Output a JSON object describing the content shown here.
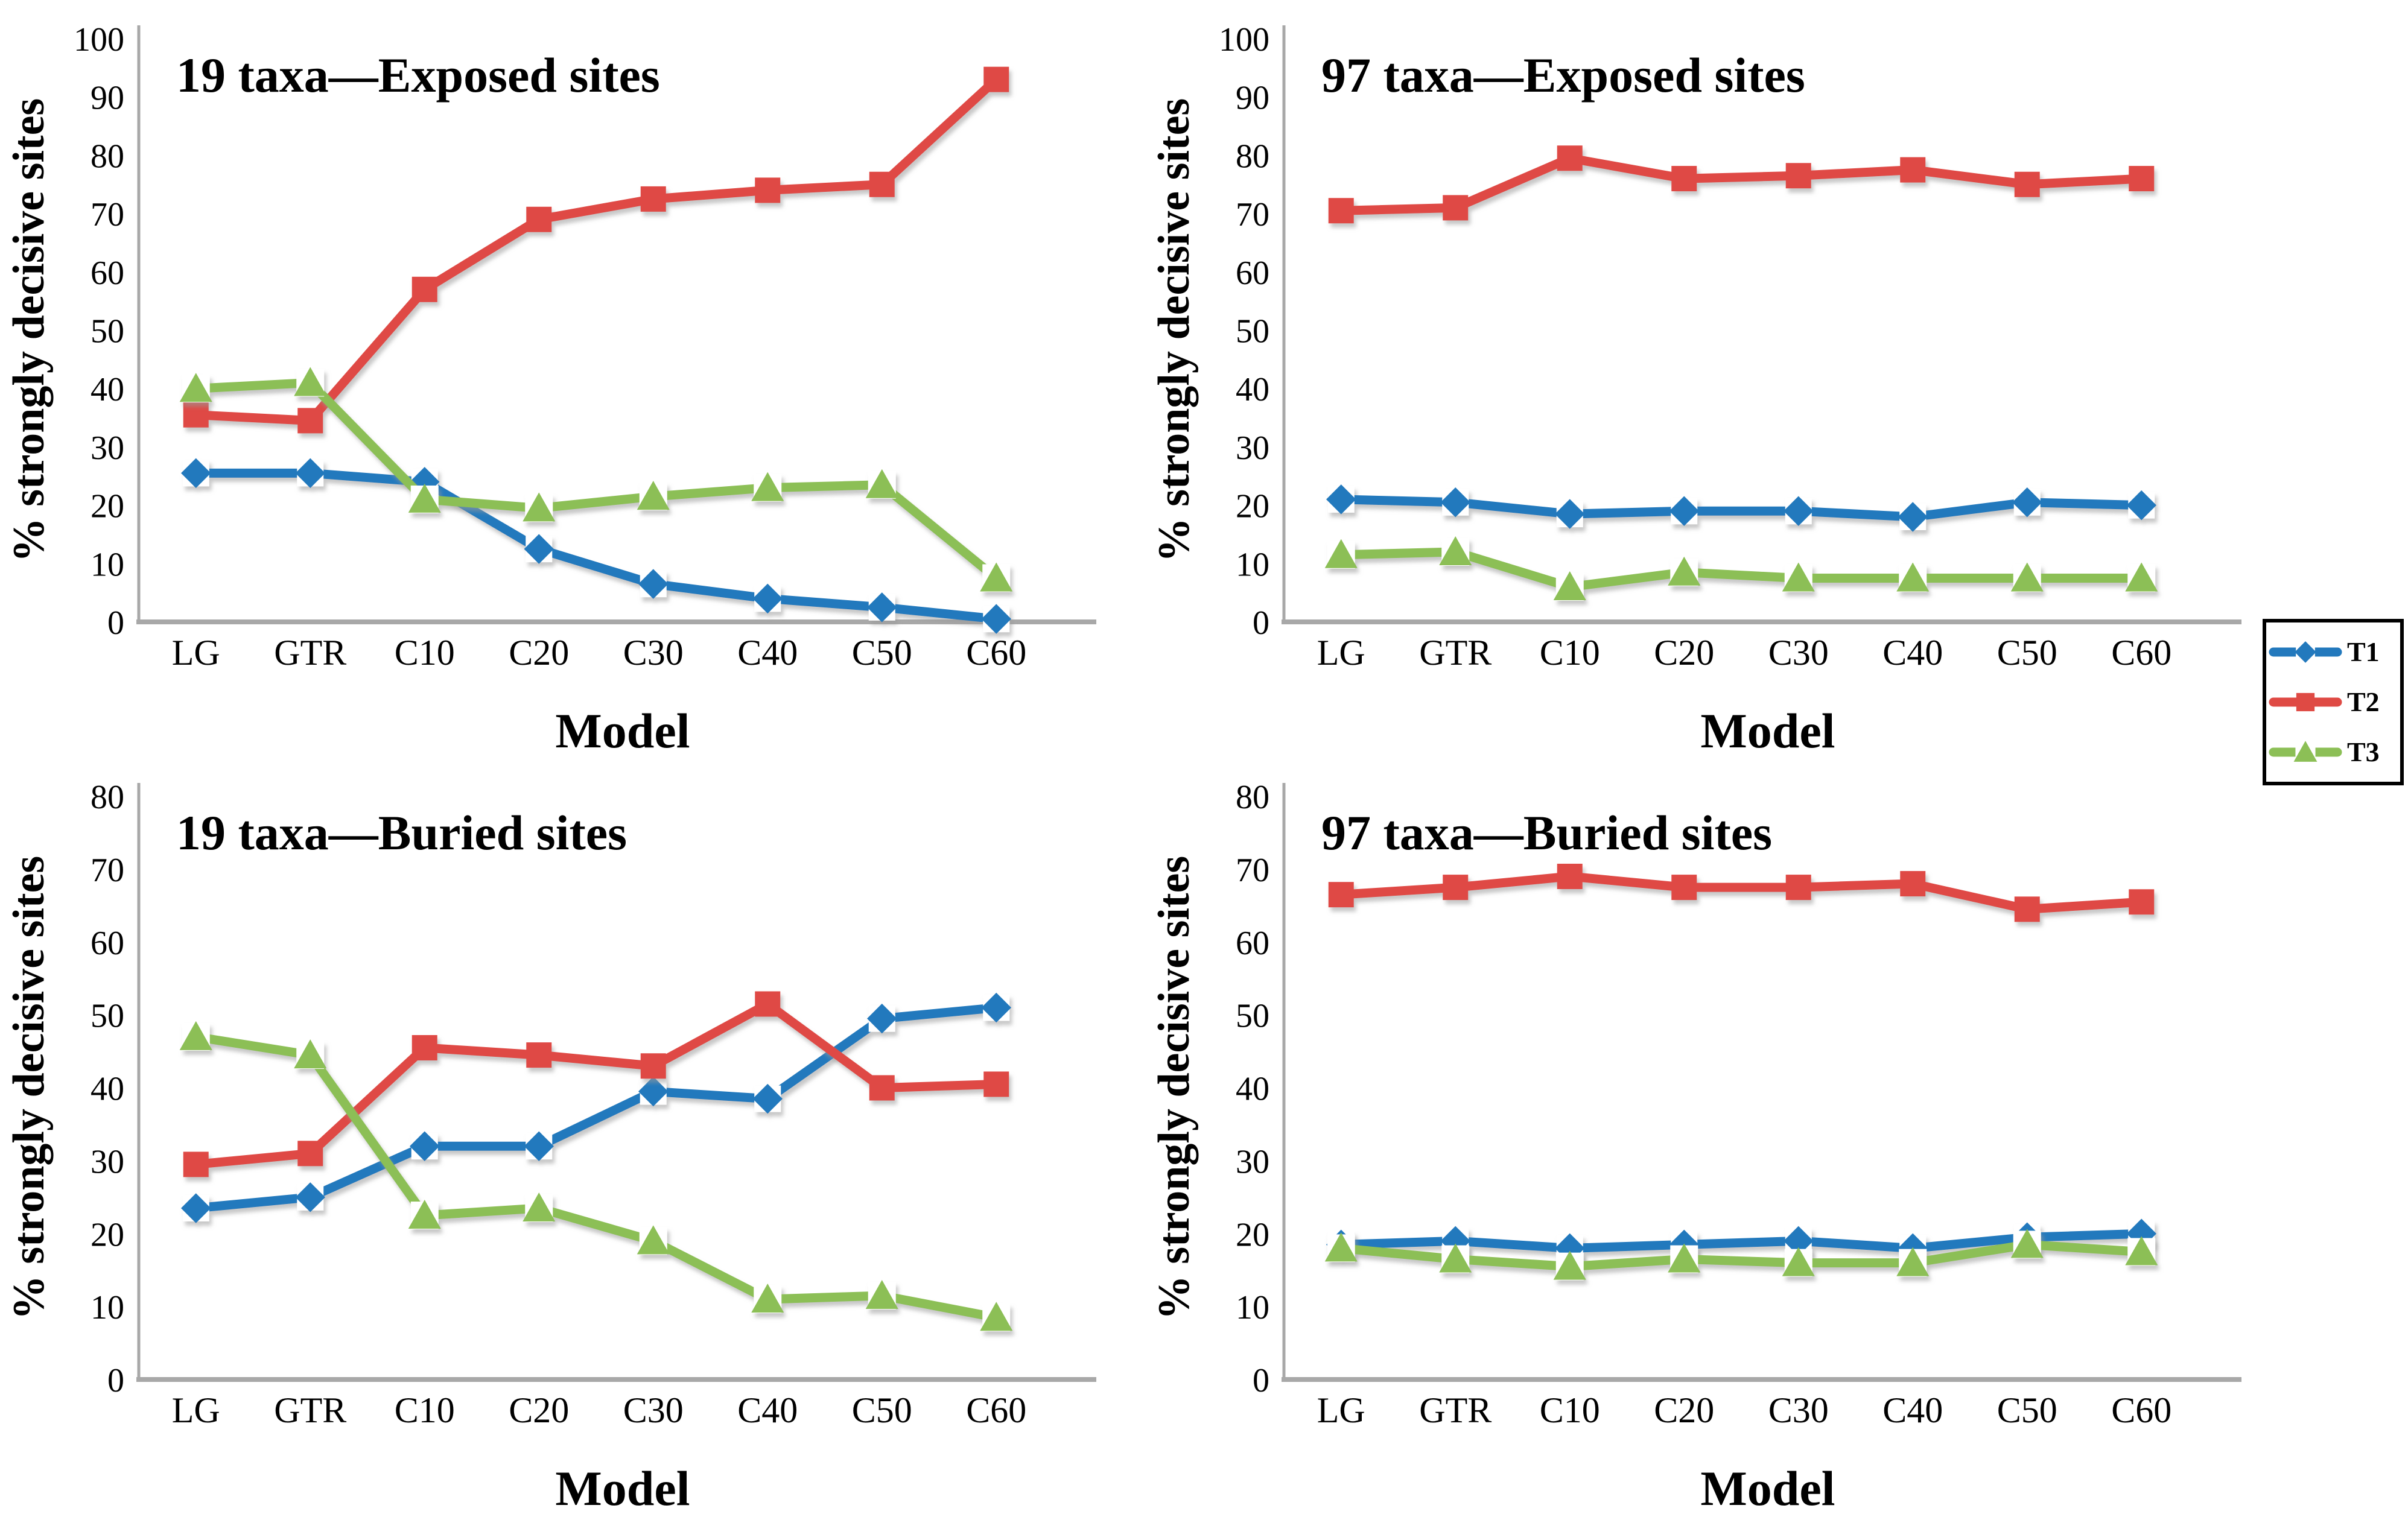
{
  "colors": {
    "t1": "#2379BD",
    "t2": "#DF4A44",
    "t3": "#8CBF56",
    "axis": "#A8A8A8",
    "text": "#000000",
    "background": "#FFFFFF"
  },
  "legend": {
    "items": [
      {
        "label": "T1",
        "marker": "diamond",
        "color_key": "t1"
      },
      {
        "label": "T2",
        "marker": "square",
        "color_key": "t2"
      },
      {
        "label": "T3",
        "marker": "triangle",
        "color_key": "t3"
      }
    ]
  },
  "chart_data": [
    {
      "id": "19-taxa-exposed",
      "type": "line",
      "title": "19 taxa—Exposed sites",
      "xlabel": "Model",
      "ylabel": "% strongly decisive sites",
      "ylim": [
        0,
        100
      ],
      "ytick_step": 10,
      "grid": false,
      "legend_position": "outside-right",
      "categories": [
        "LG",
        "GTR",
        "C10",
        "C20",
        "C30",
        "C40",
        "C50",
        "C60"
      ],
      "series": [
        {
          "name": "T1",
          "marker": "diamond",
          "color_key": "t1",
          "values": [
            25.5,
            25.5,
            24,
            12.5,
            6.5,
            4,
            2.5,
            0.5
          ]
        },
        {
          "name": "T2",
          "marker": "square",
          "color_key": "t2",
          "values": [
            35.5,
            34.5,
            57,
            69,
            72.5,
            74,
            75,
            93
          ]
        },
        {
          "name": "T3",
          "marker": "triangle",
          "color_key": "t3",
          "values": [
            40,
            41,
            21,
            19.5,
            21.5,
            23,
            23.5,
            7.5
          ]
        }
      ]
    },
    {
      "id": "97-taxa-exposed",
      "type": "line",
      "title": "97 taxa—Exposed sites",
      "xlabel": "Model",
      "ylabel": "% strongly decisive sites",
      "ylim": [
        0,
        100
      ],
      "ytick_step": 10,
      "grid": false,
      "legend_position": "outside-right",
      "categories": [
        "LG",
        "GTR",
        "C10",
        "C20",
        "C30",
        "C40",
        "C50",
        "C60"
      ],
      "series": [
        {
          "name": "T1",
          "marker": "diamond",
          "color_key": "t1",
          "values": [
            21,
            20.5,
            18.5,
            19,
            19,
            18,
            20.5,
            20
          ]
        },
        {
          "name": "T2",
          "marker": "square",
          "color_key": "t2",
          "values": [
            70.5,
            71,
            79.5,
            76,
            76.5,
            77.5,
            75,
            76
          ]
        },
        {
          "name": "T3",
          "marker": "triangle",
          "color_key": "t3",
          "values": [
            11.5,
            12,
            6,
            8.5,
            7.5,
            7.5,
            7.5,
            7.5
          ]
        }
      ]
    },
    {
      "id": "19-taxa-buried",
      "type": "line",
      "title": "19 taxa—Buried sites",
      "xlabel": "Model",
      "ylabel": "% strongly decisive sites",
      "ylim": [
        0,
        80
      ],
      "ytick_step": 10,
      "grid": false,
      "legend_position": "outside-right",
      "categories": [
        "LG",
        "GTR",
        "C10",
        "C20",
        "C30",
        "C40",
        "C50",
        "C60"
      ],
      "series": [
        {
          "name": "T1",
          "marker": "diamond",
          "color_key": "t1",
          "values": [
            23.5,
            25,
            32,
            32,
            39.5,
            38.5,
            49.5,
            51
          ]
        },
        {
          "name": "T2",
          "marker": "square",
          "color_key": "t2",
          "values": [
            29.5,
            31,
            45.5,
            44.5,
            43,
            51.5,
            40,
            40.5
          ]
        },
        {
          "name": "T3",
          "marker": "triangle",
          "color_key": "t3",
          "values": [
            47,
            44.5,
            22.5,
            23.5,
            19,
            11,
            11.5,
            8.5
          ]
        }
      ]
    },
    {
      "id": "97-taxa-buried",
      "type": "line",
      "title": "97 taxa—Buried sites",
      "xlabel": "Model",
      "ylabel": "% strongly decisive sites",
      "ylim": [
        0,
        80
      ],
      "ytick_step": 10,
      "grid": false,
      "legend_position": "outside-right",
      "categories": [
        "LG",
        "GTR",
        "C10",
        "C20",
        "C30",
        "C40",
        "C50",
        "C60"
      ],
      "series": [
        {
          "name": "T1",
          "marker": "diamond",
          "color_key": "t1",
          "values": [
            18.5,
            19,
            18,
            18.5,
            19,
            18,
            19.5,
            20
          ]
        },
        {
          "name": "T2",
          "marker": "square",
          "color_key": "t2",
          "values": [
            66.5,
            67.5,
            69,
            67.5,
            67.5,
            68,
            64.5,
            65.5
          ]
        },
        {
          "name": "T3",
          "marker": "triangle",
          "color_key": "t3",
          "values": [
            18,
            16.5,
            15.5,
            16.5,
            16,
            16,
            18.5,
            17.5
          ]
        }
      ]
    }
  ]
}
